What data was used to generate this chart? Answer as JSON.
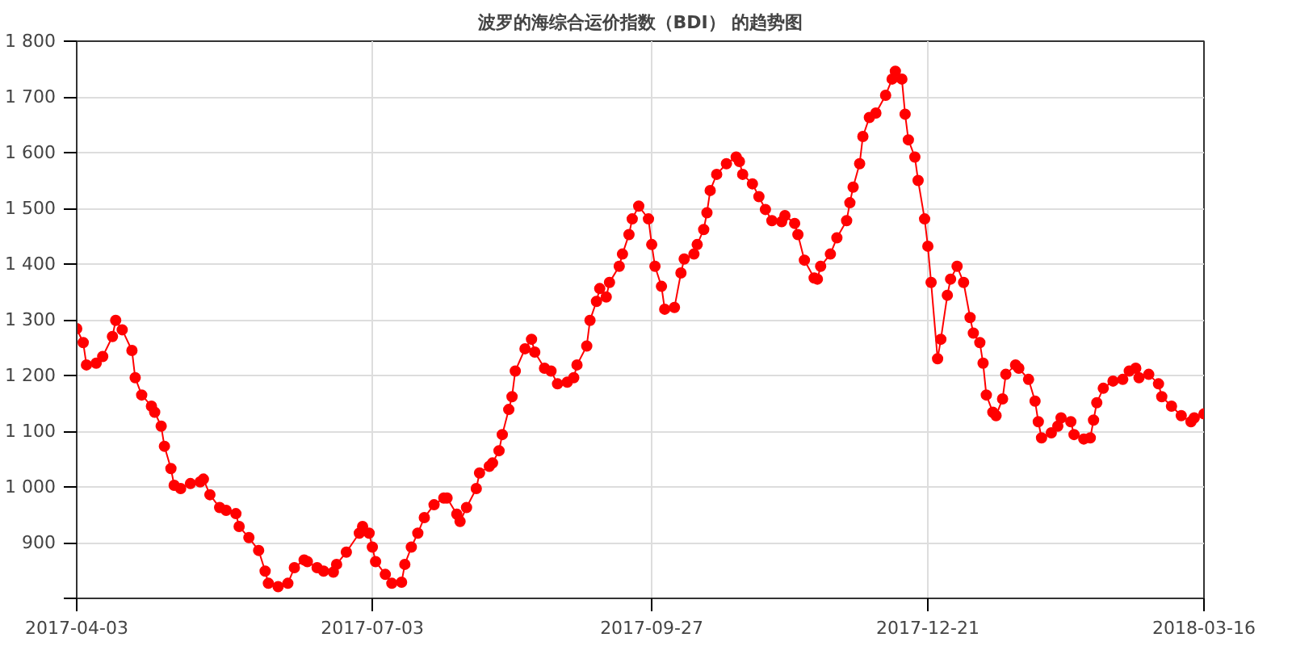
{
  "chart_data": {
    "type": "line",
    "title": "波罗的海综合运价指数（BDI） 的趋势图",
    "x": [
      "2017-04-03",
      "2017-04-05",
      "2017-04-06",
      "2017-04-09",
      "2017-04-11",
      "2017-04-14",
      "2017-04-15",
      "2017-04-17",
      "2017-04-20",
      "2017-04-21",
      "2017-04-23",
      "2017-04-26",
      "2017-04-27",
      "2017-04-29",
      "2017-04-30",
      "2017-05-02",
      "2017-05-03",
      "2017-05-05",
      "2017-05-08",
      "2017-05-11",
      "2017-05-12",
      "2017-05-14",
      "2017-05-17",
      "2017-05-19",
      "2017-05-22",
      "2017-05-23",
      "2017-05-26",
      "2017-05-29",
      "2017-05-31",
      "2017-06-01",
      "2017-06-04",
      "2017-06-07",
      "2017-06-09",
      "2017-06-12",
      "2017-06-13",
      "2017-06-16",
      "2017-06-18",
      "2017-06-21",
      "2017-06-22",
      "2017-06-25",
      "2017-06-29",
      "2017-06-30",
      "2017-07-02",
      "2017-07-03",
      "2017-07-04",
      "2017-07-07",
      "2017-07-09",
      "2017-07-12",
      "2017-07-13",
      "2017-07-15",
      "2017-07-17",
      "2017-07-19",
      "2017-07-22",
      "2017-07-25",
      "2017-07-26",
      "2017-07-29",
      "2017-07-30",
      "2017-08-01",
      "2017-08-04",
      "2017-08-05",
      "2017-08-08",
      "2017-08-09",
      "2017-08-11",
      "2017-08-12",
      "2017-08-14",
      "2017-08-15",
      "2017-08-16",
      "2017-08-19",
      "2017-08-21",
      "2017-08-22",
      "2017-08-25",
      "2017-08-27",
      "2017-08-29",
      "2017-09-01",
      "2017-09-03",
      "2017-09-04",
      "2017-09-07",
      "2017-09-08",
      "2017-09-10",
      "2017-09-11",
      "2017-09-13",
      "2017-09-14",
      "2017-09-17",
      "2017-09-18",
      "2017-09-20",
      "2017-09-21",
      "2017-09-23",
      "2017-09-26",
      "2017-09-27",
      "2017-09-28",
      "2017-09-30",
      "2017-10-01",
      "2017-10-04",
      "2017-10-06",
      "2017-10-07",
      "2017-10-10",
      "2017-10-11",
      "2017-10-13",
      "2017-10-14",
      "2017-10-15",
      "2017-10-17",
      "2017-10-20",
      "2017-10-23",
      "2017-10-24",
      "2017-10-25",
      "2017-10-28",
      "2017-10-30",
      "2017-11-01",
      "2017-11-03",
      "2017-11-06",
      "2017-11-07",
      "2017-11-10",
      "2017-11-11",
      "2017-11-13",
      "2017-11-16",
      "2017-11-17",
      "2017-11-18",
      "2017-11-21",
      "2017-11-23",
      "2017-11-26",
      "2017-11-27",
      "2017-11-28",
      "2017-11-30",
      "2017-12-01",
      "2017-12-03",
      "2017-12-05",
      "2017-12-08",
      "2017-12-10",
      "2017-12-11",
      "2017-12-13",
      "2017-12-14",
      "2017-12-15",
      "2017-12-17",
      "2017-12-18",
      "2017-12-20",
      "2017-12-21",
      "2017-12-22",
      "2017-12-24",
      "2017-12-25",
      "2017-12-27",
      "2017-12-28",
      "2017-12-30",
      "2018-01-01",
      "2018-01-03",
      "2018-01-04",
      "2018-01-06",
      "2018-01-07",
      "2018-01-08",
      "2018-01-10",
      "2018-01-11",
      "2018-01-13",
      "2018-01-14",
      "2018-01-17",
      "2018-01-18",
      "2018-01-21",
      "2018-01-23",
      "2018-01-24",
      "2018-01-25",
      "2018-01-28",
      "2018-01-30",
      "2018-01-31",
      "2018-02-03",
      "2018-02-04",
      "2018-02-07",
      "2018-02-09",
      "2018-02-10",
      "2018-02-11",
      "2018-02-13",
      "2018-02-16",
      "2018-02-19",
      "2018-02-21",
      "2018-02-23",
      "2018-02-24",
      "2018-02-27",
      "2018-03-02",
      "2018-03-03",
      "2018-03-06",
      "2018-03-09",
      "2018-03-12",
      "2018-03-13",
      "2018-03-16"
    ],
    "series": [
      {
        "color": "#ff0000",
        "values": [
          1284,
          1259,
          1219,
          1222,
          1234,
          1270,
          1299,
          1282,
          1245,
          1196,
          1165,
          1145,
          1134,
          1109,
          1073,
          1033,
          1003,
          997,
          1006,
          1009,
          1014,
          986,
          963,
          958,
          952,
          929,
          909,
          886,
          849,
          827,
          821,
          827,
          855,
          869,
          866,
          855,
          849,
          847,
          861,
          883,
          917,
          929,
          917,
          892,
          866,
          843,
          827,
          829,
          861,
          892,
          917,
          945,
          968,
          980,
          980,
          951,
          938,
          963,
          997,
          1025,
          1037,
          1043,
          1065,
          1094,
          1139,
          1162,
          1208,
          1248,
          1265,
          1242,
          1213,
          1208,
          1185,
          1188,
          1196,
          1219,
          1253,
          1299,
          1333,
          1356,
          1341,
          1367,
          1396,
          1418,
          1453,
          1481,
          1504,
          1481,
          1435,
          1396,
          1360,
          1319,
          1322,
          1384,
          1409,
          1418,
          1435,
          1462,
          1492,
          1532,
          1561,
          1580,
          1592,
          1584,
          1561,
          1544,
          1521,
          1498,
          1478,
          1476,
          1487,
          1473,
          1453,
          1407,
          1375,
          1373,
          1396,
          1418,
          1447,
          1478,
          1510,
          1538,
          1580,
          1629,
          1663,
          1671,
          1703,
          1732,
          1746,
          1732,
          1669,
          1623,
          1592,
          1550,
          1481,
          1432,
          1367,
          1230,
          1265,
          1344,
          1373,
          1396,
          1367,
          1304,
          1276,
          1259,
          1222,
          1165,
          1134,
          1128,
          1158,
          1202,
          1219,
          1213,
          1193,
          1154,
          1117,
          1088,
          1097,
          1109,
          1124,
          1117,
          1094,
          1086,
          1088,
          1120,
          1151,
          1177,
          1190,
          1193,
          1208,
          1213,
          1196,
          1202,
          1185,
          1162,
          1145,
          1128,
          1117,
          1124,
          1131
        ]
      }
    ],
    "xlim": [
      "2017-04-03",
      "2018-03-16"
    ],
    "xticks": [
      "2017-04-03",
      "2017-07-03",
      "2017-09-27",
      "2017-12-21",
      "2018-03-16"
    ],
    "ylim": [
      800,
      1800
    ],
    "yticks": [
      {
        "value": 800,
        "label": null
      },
      {
        "value": 900,
        "label": "900"
      },
      {
        "value": 1000,
        "label": "1 000"
      },
      {
        "value": 1100,
        "label": "1 100"
      },
      {
        "value": 1200,
        "label": "1 200"
      },
      {
        "value": 1300,
        "label": "1 300"
      },
      {
        "value": 1400,
        "label": "1 400"
      },
      {
        "value": 1500,
        "label": "1 500"
      },
      {
        "value": 1600,
        "label": "1 600"
      },
      {
        "value": 1700,
        "label": "1 700"
      },
      {
        "value": 1800,
        "label": "1 800"
      }
    ],
    "grid": true,
    "marker": "circle",
    "line_style": "solid"
  }
}
